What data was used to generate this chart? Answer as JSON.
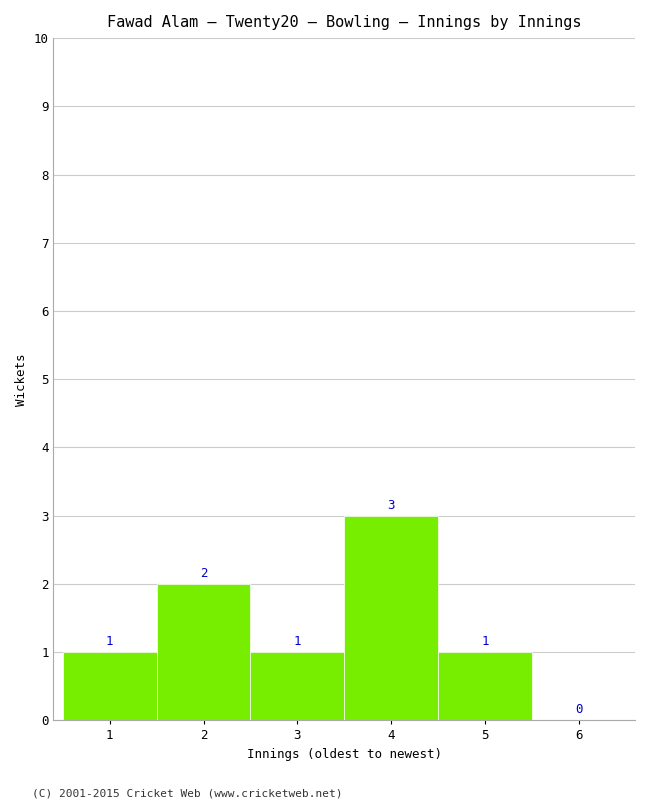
{
  "title": "Fawad Alam – Twenty20 – Bowling – Innings by Innings",
  "xlabel": "Innings (oldest to newest)",
  "ylabel": "Wickets",
  "categories": [
    1,
    2,
    3,
    4,
    5,
    6
  ],
  "values": [
    1,
    2,
    1,
    3,
    1,
    0
  ],
  "bar_color": "#77ee00",
  "label_color": "#0000cc",
  "background_color": "#ffffff",
  "grid_color": "#cccccc",
  "ylim": [
    0,
    10
  ],
  "yticks": [
    0,
    1,
    2,
    3,
    4,
    5,
    6,
    7,
    8,
    9,
    10
  ],
  "title_fontsize": 11,
  "axis_label_fontsize": 9,
  "tick_fontsize": 9,
  "value_label_fontsize": 9,
  "copyright": "(C) 2001-2015 Cricket Web (www.cricketweb.net)",
  "copyright_fontsize": 8
}
